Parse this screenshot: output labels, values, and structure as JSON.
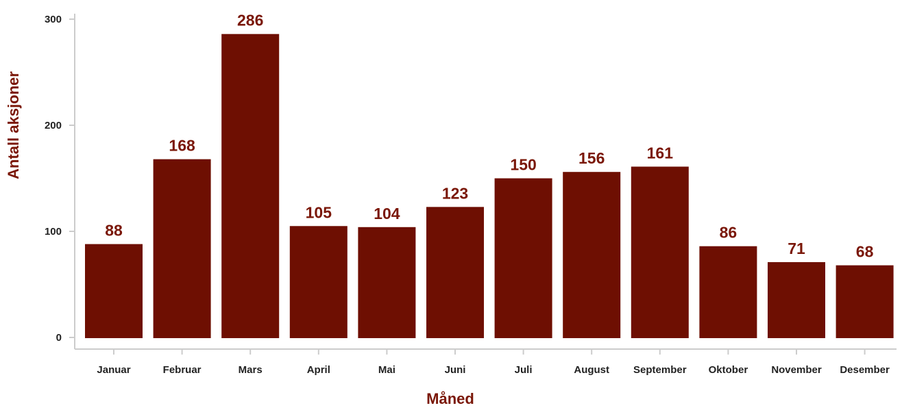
{
  "colors": {
    "bar": "#6e0f02",
    "label": "#7a1708",
    "axis": "#cccccc",
    "tick_text": "#222222"
  },
  "chart_data": {
    "type": "bar",
    "title": "",
    "xlabel": "Måned",
    "ylabel": "Antall aksjoner",
    "categories": [
      "Januar",
      "Februar",
      "Mars",
      "April",
      "Mai",
      "Juni",
      "Juli",
      "August",
      "September",
      "Oktober",
      "November",
      "Desember"
    ],
    "values": [
      88,
      168,
      286,
      105,
      104,
      123,
      150,
      156,
      161,
      86,
      71,
      68
    ],
    "ylim": [
      0,
      300
    ],
    "yticks": [
      0,
      100,
      200,
      300
    ],
    "grid": false,
    "data_labels": true
  }
}
